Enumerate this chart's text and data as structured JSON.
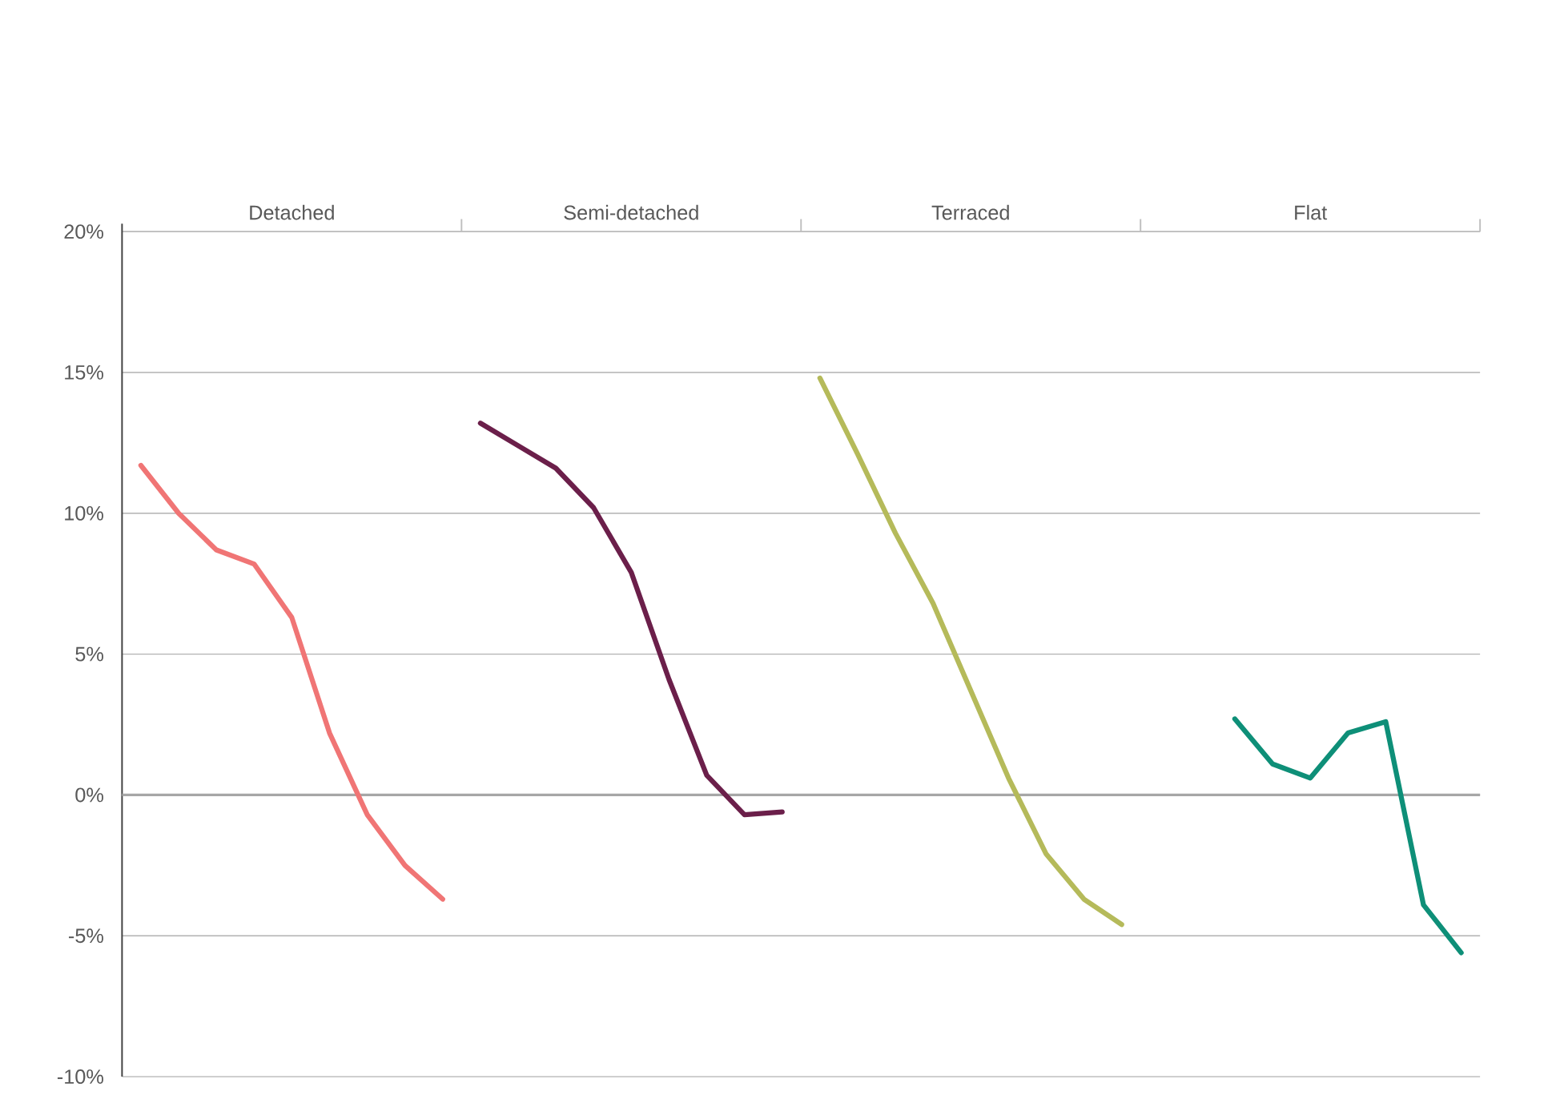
{
  "chart_data": {
    "type": "line",
    "categories": [
      null,
      null,
      null,
      null,
      "Detached",
      null,
      null,
      null,
      null,
      null,
      null,
      null,
      null,
      "Semi-detached",
      null,
      null,
      null,
      null,
      null,
      null,
      null,
      null,
      "Terraced",
      null,
      null,
      null,
      null,
      null,
      null,
      null,
      null,
      "Flat",
      null,
      null,
      null,
      null
    ],
    "series": [
      {
        "color": "#f07575",
        "values": [
          11.7,
          10.0,
          8.7,
          8.2,
          6.3,
          2.2,
          -0.7,
          -2.5,
          -3.7,
          null,
          null,
          null,
          null,
          null,
          null,
          null,
          null,
          null,
          null,
          null,
          null,
          null,
          null,
          null,
          null,
          null,
          null,
          null,
          null,
          null,
          null,
          null,
          null,
          null,
          null,
          null
        ]
      },
      {
        "color": "#6b1f4a",
        "values": [
          null,
          null,
          null,
          null,
          null,
          null,
          null,
          null,
          null,
          13.2,
          12.4,
          11.6,
          10.2,
          7.9,
          4.1,
          0.7,
          -0.7,
          -0.6,
          null,
          null,
          null,
          null,
          null,
          null,
          null,
          null,
          null,
          null,
          null,
          null,
          null,
          null,
          null,
          null,
          null,
          null
        ]
      },
      {
        "color": "#b5ba5a",
        "values": [
          null,
          null,
          null,
          null,
          null,
          null,
          null,
          null,
          null,
          null,
          null,
          null,
          null,
          null,
          null,
          null,
          null,
          null,
          14.8,
          12.1,
          9.3,
          6.8,
          3.7,
          0.6,
          -2.1,
          -3.7,
          -4.6,
          null,
          null,
          null,
          null,
          null,
          null,
          null,
          null,
          null
        ]
      },
      {
        "color": "#0e8f78",
        "values": [
          null,
          null,
          null,
          null,
          null,
          null,
          null,
          null,
          null,
          null,
          null,
          null,
          null,
          null,
          null,
          null,
          null,
          null,
          null,
          null,
          null,
          null,
          null,
          null,
          null,
          null,
          null,
          null,
          null,
          2.7,
          1.1,
          0.6,
          2.2,
          2.6,
          -3.9,
          -5.6
        ]
      }
    ],
    "ylim": [
      -10,
      20
    ],
    "yticks": [
      {
        "value": -10,
        "label": "-10%"
      },
      {
        "value": -5,
        "label": "-5%"
      },
      {
        "value": 0,
        "label": "0%"
      },
      {
        "value": 5,
        "label": "5%"
      },
      {
        "value": 10,
        "label": "10%"
      },
      {
        "value": 15,
        "label": "15%"
      },
      {
        "value": 20,
        "label": "20%"
      }
    ],
    "grid": "y",
    "ref_lines": [
      {
        "axis": "y",
        "value": 0,
        "color": "#a6a6a6"
      }
    ]
  }
}
